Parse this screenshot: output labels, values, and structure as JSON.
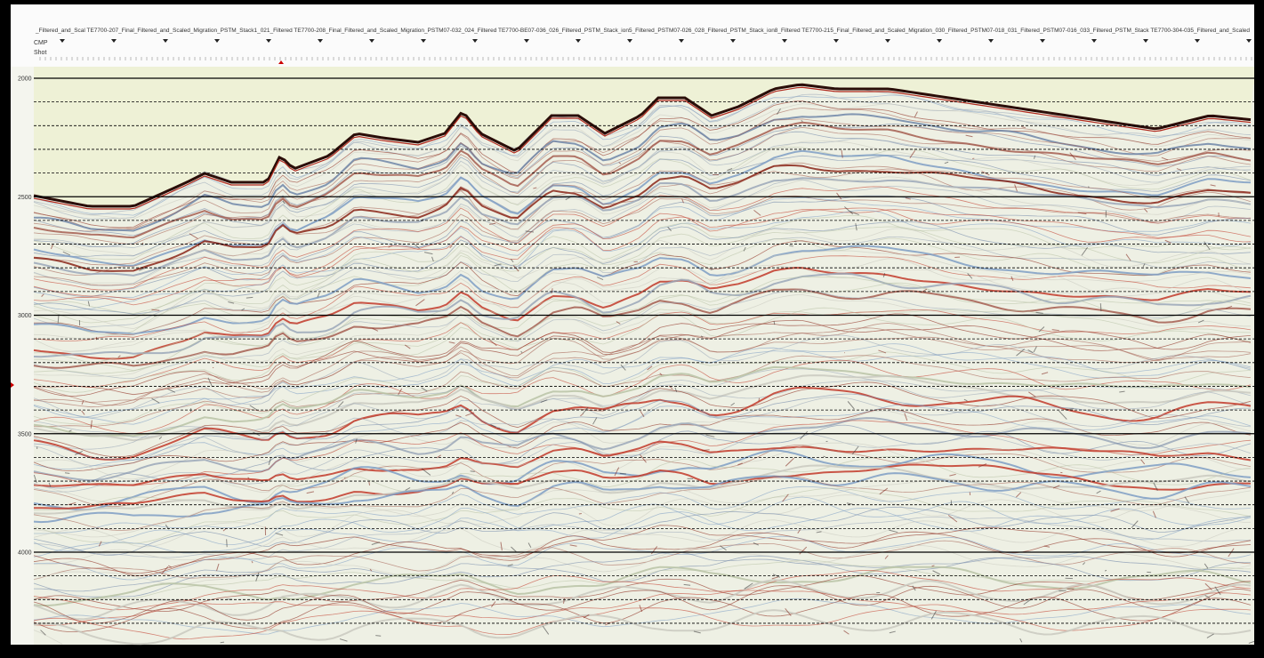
{
  "header": {
    "line_names": "_Filtered_and_Scal TE7700-207_Final_Filtered_and_Scaled_Migration_PSTM_Stack1_021_Filtered TE7700-208_Final_Filtered_and_Scaled_Migration_PSTM07-032_024_Filtered TE7700-BE07-036_026_Filtered_PSTM_Stack_ion5_Filtered_PSTM07-026_028_Filtered_PSTM_Stack_ion8_Filtered TE7700-215_Final_Filtered_and_Scaled_Migration_030_Filtered_PSTM07-018_031_Filtered_PSTM07-016_033_Filtered_PSTM_Stack TE7700-304-035_Filtered_and_Scaled",
    "row_labels": [
      "CMP",
      "Shot"
    ]
  },
  "time_axis": {
    "labels": [
      "2000",
      "2500",
      "3000",
      "3500",
      "4000"
    ]
  }
}
